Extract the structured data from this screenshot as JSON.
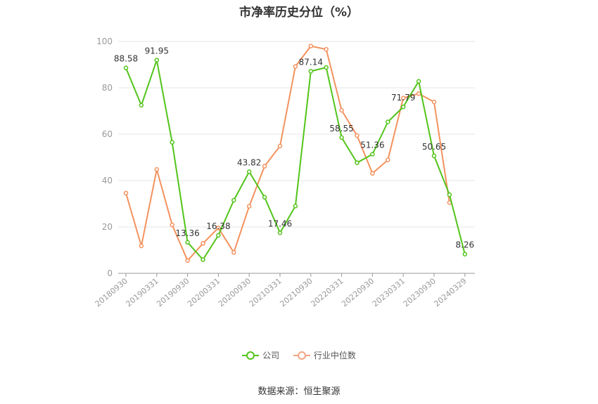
{
  "chart_data": {
    "type": "line",
    "title": "市净率历史分位（%）",
    "ylim": [
      0,
      100
    ],
    "yticks": [
      "0",
      "20",
      "40",
      "60",
      "80",
      "100"
    ],
    "x_tick_labels": [
      "20180930",
      "20190331",
      "20190930",
      "20200331",
      "20200930",
      "20210331",
      "20210930",
      "20220331",
      "20220930",
      "20230331",
      "20230930",
      "20240329"
    ],
    "grid": true,
    "legend_position": "bottom",
    "series": [
      {
        "name": "公司",
        "color": "#52c41a",
        "values": [
          88.58,
          72.5,
          91.95,
          56.5,
          13.36,
          5.9,
          16.38,
          31.5,
          43.82,
          32.8,
          17.46,
          29.0,
          87.14,
          88.8,
          58.55,
          47.7,
          51.36,
          65.3,
          71.79,
          82.8,
          50.65,
          33.9,
          8.26
        ],
        "labeled_points": [
          {
            "index": 0,
            "label": "88.58"
          },
          {
            "index": 2,
            "label": "91.95"
          },
          {
            "index": 4,
            "label": "13.36"
          },
          {
            "index": 6,
            "label": "16.38"
          },
          {
            "index": 8,
            "label": "43.82"
          },
          {
            "index": 10,
            "label": "17.46"
          },
          {
            "index": 12,
            "label": "87.14"
          },
          {
            "index": 14,
            "label": "58.55"
          },
          {
            "index": 16,
            "label": "51.36"
          },
          {
            "index": 18,
            "label": "71.79"
          },
          {
            "index": 20,
            "label": "50.65"
          },
          {
            "index": 22,
            "label": "8.26"
          }
        ]
      },
      {
        "name": "行业中位数",
        "color": "#f4925e",
        "values": [
          34.6,
          11.8,
          44.8,
          20.9,
          5.5,
          12.9,
          19.6,
          9.0,
          28.9,
          46.2,
          54.9,
          89.2,
          98.0,
          96.6,
          70.3,
          59.4,
          43.1,
          48.9,
          75.6,
          77.5,
          73.9,
          30.5,
          null
        ]
      }
    ]
  },
  "source_text": "数据来源：恒生聚源"
}
